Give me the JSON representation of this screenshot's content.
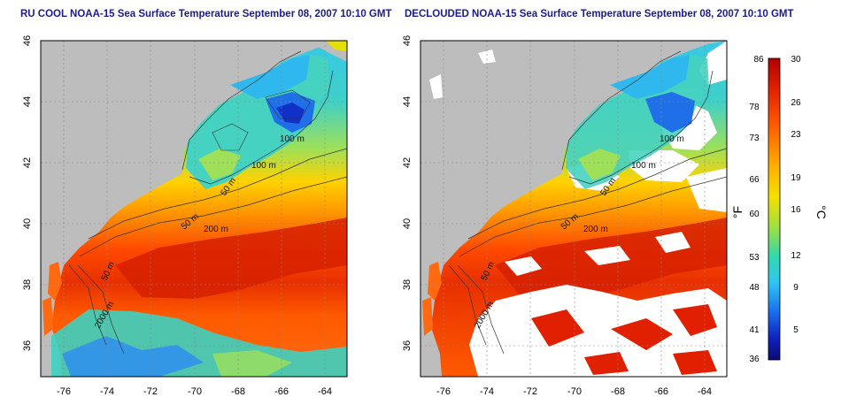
{
  "maps": [
    {
      "title": "RU COOL NOAA-15 Sea Surface Temperature September 08, 2007 10:10 GMT",
      "contour_labels": [
        "100 m",
        "100 m",
        "50 m",
        "50 m",
        "200 m",
        "50 m",
        "2000 m"
      ]
    },
    {
      "title": "DECLOUDED NOAA-15 Sea Surface Temperature September 08, 2007 10:10 GMT",
      "contour_labels": [
        "100 m",
        "100 m",
        "50 m",
        "50 m",
        "200 m",
        "50 m",
        "2000 m"
      ]
    }
  ],
  "axes": {
    "lon_ticks": [
      "-76",
      "-74",
      "-72",
      "-70",
      "-68",
      "-66",
      "-64"
    ],
    "lat_ticks": [
      "46",
      "44",
      "42",
      "40",
      "38",
      "36"
    ],
    "lon_range": [
      -77,
      -63
    ],
    "lat_range": [
      35,
      46
    ]
  },
  "colorbar": {
    "fahrenheit_unit": "°F",
    "celsius_unit": "°C",
    "fahrenheit_ticks": [
      "86",
      "78",
      "73",
      "66",
      "60",
      "53",
      "48",
      "41",
      "36"
    ],
    "celsius_ticks": [
      "30",
      "26",
      "23",
      "19",
      "16",
      "12",
      "9",
      "5"
    ],
    "colors": [
      "#b00000",
      "#e02000",
      "#ff5a00",
      "#ffb000",
      "#f5e000",
      "#9fe040",
      "#30d8b0",
      "#30c8f0",
      "#1a70f0",
      "#1020c0",
      "#0a0a70"
    ]
  },
  "colors": {
    "land": "#bdbdbd",
    "cloud_masked": "#ffffff",
    "title": "#1a1a99"
  }
}
